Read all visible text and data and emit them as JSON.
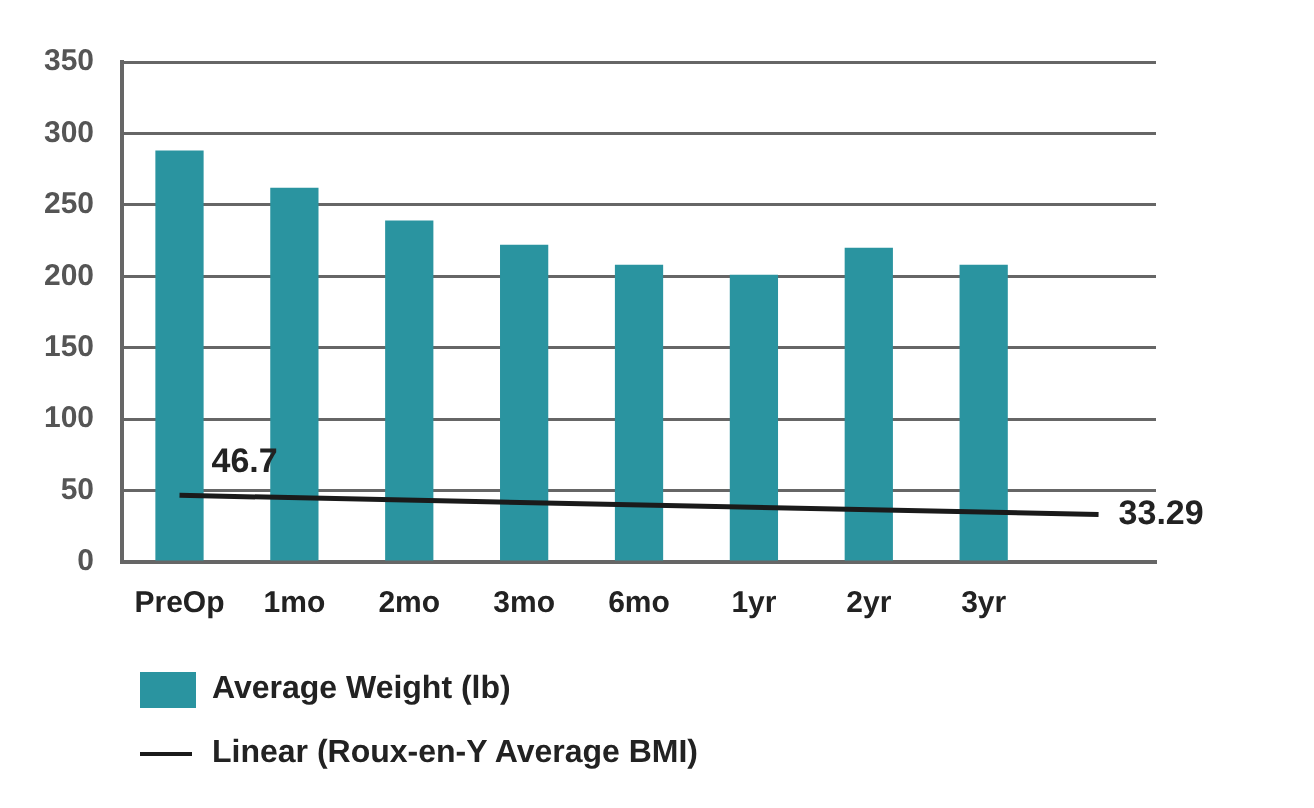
{
  "chart_data": {
    "type": "bar",
    "categories": [
      "PreOp",
      "1mo",
      "2mo",
      "3mo",
      "6mo",
      "1yr",
      "2yr",
      "3yr",
      null
    ],
    "series": [
      {
        "name": "Average Weight (lb)",
        "color": "#2a94a0",
        "values": [
          288,
          262,
          239,
          222,
          208,
          201,
          220,
          208,
          null
        ]
      },
      {
        "name": "Linear (Roux-en-Y Average BMI)",
        "type": "line",
        "color": "#1a1a1a",
        "values": [
          46.7,
          null,
          null,
          null,
          null,
          null,
          null,
          null,
          33.29
        ],
        "value_labels": [
          "46.7",
          null,
          null,
          null,
          null,
          null,
          null,
          null,
          "33.29"
        ],
        "marker": "none"
      }
    ],
    "ylim": [
      0,
      350
    ],
    "yticks": [
      0,
      50,
      100,
      150,
      200,
      250,
      300,
      350
    ],
    "grid": "y",
    "legend": "bottom left"
  }
}
